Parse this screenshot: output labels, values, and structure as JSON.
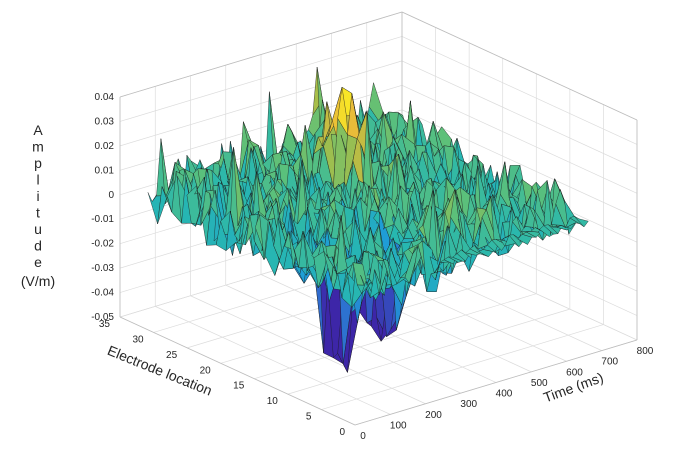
{
  "chart_data": {
    "type": "surface",
    "x": {
      "label": "Time (ms)",
      "range": [
        0,
        800
      ],
      "ticks": [
        0,
        100,
        200,
        300,
        400,
        500,
        600,
        700,
        800
      ]
    },
    "y": {
      "label": "Electrode location",
      "range": [
        0,
        35
      ],
      "ticks": [
        0,
        5,
        10,
        15,
        20,
        25,
        30,
        35
      ]
    },
    "z": {
      "label_letters": [
        "A",
        "m",
        "p",
        "l",
        "i",
        "t",
        "u",
        "d",
        "e"
      ],
      "label_unit": "(V/m)",
      "range": [
        -0.05,
        0.04
      ],
      "ticks": [
        0.04,
        0.03,
        0.02,
        0.01,
        0,
        -0.01,
        -0.02,
        -0.03,
        -0.04,
        -0.05
      ]
    },
    "features": [
      {
        "time_ms": 180,
        "electrode": 12,
        "amplitude": -0.045
      },
      {
        "time_ms": 300,
        "electrode": 12,
        "amplitude": -0.045
      },
      {
        "time_ms": 420,
        "electrode": 24,
        "amplitude": 0.036
      }
    ],
    "colormap": [
      "#3d26a8",
      "#2f6ccf",
      "#1f9ed7",
      "#27b7b0",
      "#5cc07a",
      "#a5be4a",
      "#e8b93a",
      "#f9e925"
    ],
    "grid": true
  }
}
